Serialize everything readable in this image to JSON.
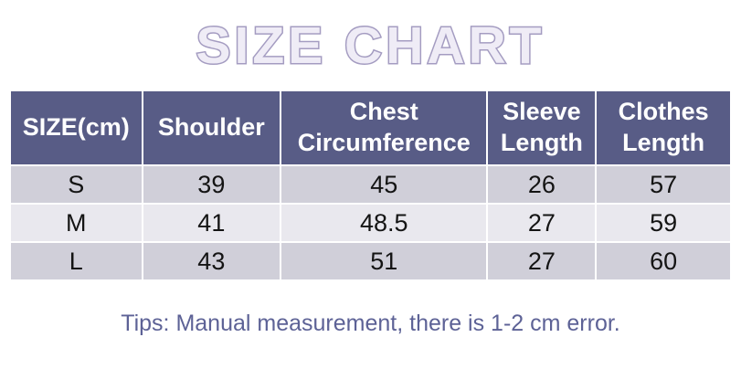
{
  "title": "SIZE CHART",
  "table": {
    "headers": [
      "SIZE(cm)",
      "Shoulder",
      "Chest Circumference",
      "Sleeve Length",
      "Clothes Length"
    ],
    "rows": [
      [
        "S",
        "39",
        "45",
        "26",
        "57"
      ],
      [
        "M",
        "41",
        "48.5",
        "27",
        "59"
      ],
      [
        "L",
        "43",
        "51",
        "27",
        "60"
      ]
    ]
  },
  "tip": "Tips: Manual measurement, there is 1-2 cm error.",
  "colors": {
    "header-bg": "#585c86",
    "header-text": "#ffffff",
    "row-odd": "#d0cfd9",
    "row-even": "#e9e8ee",
    "cell-text": "#141414",
    "title-fill": "#efecf6",
    "title-stroke": "#a49cc1",
    "tip-color": "#5d6296"
  },
  "chart_data": {
    "type": "table",
    "title": "SIZE CHART",
    "unit": "cm",
    "columns": [
      "SIZE(cm)",
      "Shoulder",
      "Chest Circumference",
      "Sleeve Length",
      "Clothes Length"
    ],
    "rows": [
      {
        "size": "S",
        "shoulder": 39,
        "chest_circumference": 45,
        "sleeve_length": 26,
        "clothes_length": 57
      },
      {
        "size": "M",
        "shoulder": 41,
        "chest_circumference": 48.5,
        "sleeve_length": 27,
        "clothes_length": 59
      },
      {
        "size": "L",
        "shoulder": 43,
        "chest_circumference": 51,
        "sleeve_length": 27,
        "clothes_length": 60
      }
    ],
    "note": "Tips: Manual measurement, there is 1-2 cm error."
  }
}
